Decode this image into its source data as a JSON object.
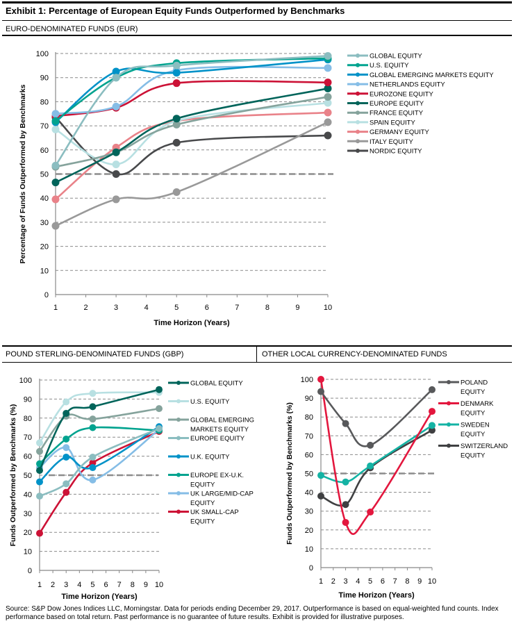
{
  "title": "Exhibit 1: Percentage of European Equity Funds Outperformed by Benchmarks",
  "sections": {
    "eur": "EURO-DENOMINATED FUNDS (EUR)",
    "gbp": "POUND STERLING-DENOMINATED FUNDS (GBP)",
    "other": "OTHER LOCAL CURRENCY-DENOMINATED FUNDS"
  },
  "footer": "Source: S&P Dow Jones Indices LLC, Morningstar.  Data for periods ending December 29, 2017.  Outperformance is based on equal-weighted fund counts.  Index performance based on total return.  Past performance is no guarantee of future results.  Exhibit is provided for illustrative purposes.",
  "chart_data": [
    {
      "type": "line",
      "id": "eur",
      "xlabel": "Time Horizon (Years)",
      "ylabel": "Percentage of Funds Outperformed by Benchmarks",
      "xticks": [
        1,
        2,
        3,
        4,
        5,
        6,
        7,
        8,
        9,
        10
      ],
      "yticks": [
        0,
        10,
        20,
        30,
        40,
        50,
        60,
        70,
        80,
        90,
        100
      ],
      "xlim": [
        1,
        10
      ],
      "ylim": [
        0,
        100
      ],
      "reference_line": 50,
      "grid": true,
      "legend": "right",
      "x": [
        1,
        3,
        5,
        10
      ],
      "series": [
        {
          "name": "GLOBAL EQUITY",
          "color": "#8bbdc0",
          "values": [
            53.5,
            90,
            95,
            99
          ]
        },
        {
          "name": "U.S. EQUITY",
          "color": "#00a38f",
          "values": [
            72,
            90,
            96,
            98
          ]
        },
        {
          "name": "GLOBAL EMERGING MARKETS EQUITY",
          "color": "#0092c8",
          "values": [
            71.5,
            92.5,
            92,
            97.5
          ]
        },
        {
          "name": "NETHERLANDS EQUITY",
          "color": "#85bde6",
          "values": [
            75,
            78,
            93,
            94
          ]
        },
        {
          "name": "EUROZONE EQUITY",
          "color": "#cc1236",
          "values": [
            74,
            77.5,
            87.7,
            88
          ]
        },
        {
          "name": "EUROPE EQUITY",
          "color": "#00645a",
          "values": [
            46.5,
            59,
            73,
            85.5
          ]
        },
        {
          "name": "FRANCE EQUITY",
          "color": "#85a39c",
          "values": [
            53,
            59,
            70.5,
            82
          ]
        },
        {
          "name": "SPAIN EQUITY",
          "color": "#b8e0e2",
          "values": [
            68.5,
            54,
            72,
            79.5
          ]
        },
        {
          "name": "GERMANY EQUITY",
          "color": "#e98289",
          "values": [
            39.5,
            61,
            72,
            75.5
          ]
        },
        {
          "name": "ITALY EQUITY",
          "color": "#999999",
          "values": [
            28.5,
            39.5,
            42.5,
            71.5
          ]
        },
        {
          "name": "NORDIC EQUITY",
          "color": "#48494b",
          "values": [
            73.5,
            50,
            63,
            66
          ]
        }
      ]
    },
    {
      "type": "line",
      "id": "gbp",
      "xlabel": "Time Horizon (Years)",
      "ylabel": "Funds Outperformed by Benchmarks (%)",
      "xticks": [
        1,
        2,
        3,
        4,
        5,
        6,
        7,
        8,
        9,
        10
      ],
      "yticks": [
        0,
        10,
        20,
        30,
        40,
        50,
        60,
        70,
        80,
        90,
        100
      ],
      "xlim": [
        1,
        10
      ],
      "ylim": [
        0,
        100
      ],
      "reference_line": 50,
      "grid": true,
      "legend": "right",
      "x": [
        1,
        3,
        5,
        10
      ],
      "series": [
        {
          "name": "GLOBAL EQUITY",
          "color": "#00645a",
          "values": [
            52.5,
            82.5,
            86,
            95
          ]
        },
        {
          "name": "U.S. EQUITY",
          "color": "#b8e0e2",
          "values": [
            67,
            88.5,
            93,
            93.5
          ]
        },
        {
          "name": "GLOBAL EMERGING MARKETS EQUITY",
          "color": "#85a39c",
          "values": [
            62.5,
            81,
            79.5,
            85
          ]
        },
        {
          "name": "EUROPE EQUITY",
          "color": "#8bbdc0",
          "values": [
            39,
            45.5,
            59.5,
            74.5
          ]
        },
        {
          "name": "U.K. EQUITY",
          "color": "#0092c8",
          "values": [
            46.5,
            59.5,
            54,
            75.5
          ]
        },
        {
          "name": "EUROPE EX-U.K. EQUITY",
          "color": "#00a38f",
          "values": [
            56,
            69,
            75,
            73.5
          ]
        },
        {
          "name": "UK LARGE/MID-CAP EQUITY",
          "color": "#85bde6",
          "values": [
            54,
            64.5,
            47.5,
            74
          ]
        },
        {
          "name": "UK SMALL-CAP EQUITY",
          "color": "#cc1236",
          "values": [
            19.5,
            41,
            56.5,
            73
          ]
        }
      ]
    },
    {
      "type": "line",
      "id": "other",
      "xlabel": "Time Horizon (Years)",
      "ylabel": "Funds Outperformed by Benchmarks (%)",
      "xticks": [
        1,
        2,
        3,
        4,
        5,
        6,
        7,
        8,
        9,
        10
      ],
      "yticks": [
        0,
        10,
        20,
        30,
        40,
        50,
        60,
        70,
        80,
        90,
        100
      ],
      "xlim": [
        1,
        10
      ],
      "ylim": [
        0,
        100
      ],
      "reference_line": 50,
      "grid": true,
      "legend": "right",
      "x": [
        1,
        3,
        5,
        10
      ],
      "series": [
        {
          "name": "POLAND EQUITY",
          "color": "#58595b",
          "values": [
            93.5,
            76.5,
            65,
            94.5
          ]
        },
        {
          "name": "DENMARK EQUITY",
          "color": "#e3173e",
          "values": [
            100,
            24,
            29.5,
            83
          ]
        },
        {
          "name": "SWEDEN EQUITY",
          "color": "#14b3a4",
          "values": [
            49,
            45.5,
            54,
            75.5
          ]
        },
        {
          "name": "SWITZERLAND EQUITY",
          "color": "#3f4042",
          "values": [
            38,
            33.5,
            53,
            73
          ]
        }
      ]
    }
  ]
}
